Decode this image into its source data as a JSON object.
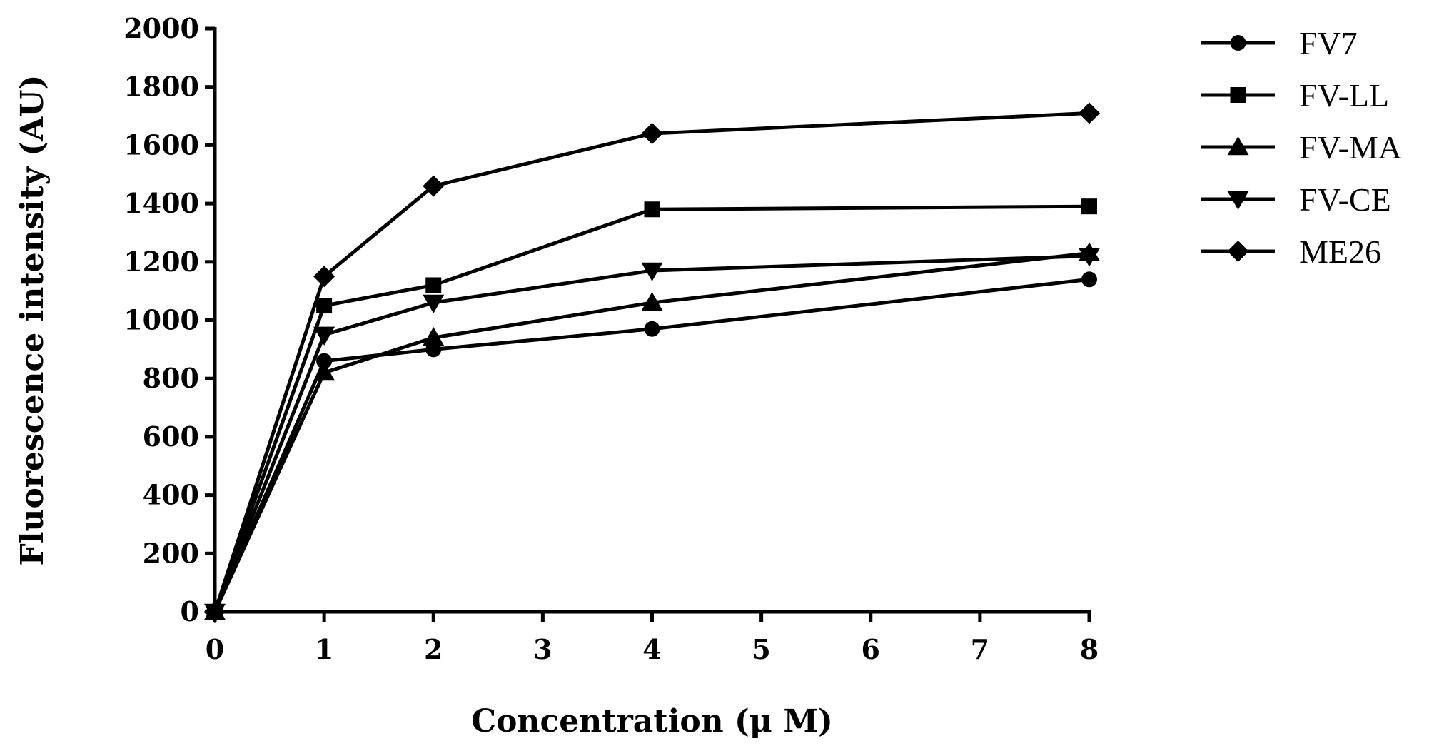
{
  "chart_data": {
    "type": "line",
    "title": "",
    "xlabel": "Concentration (μ M)",
    "ylabel": "Fluorescence intensity (AU)",
    "xlim": [
      0,
      8
    ],
    "ylim": [
      0,
      2000
    ],
    "x_ticks": [
      "0",
      "1",
      "2",
      "3",
      "4",
      "5",
      "6",
      "7",
      "8"
    ],
    "y_ticks": [
      "0",
      "200",
      "400",
      "600",
      "800",
      "1000",
      "1200",
      "1400",
      "1600",
      "1800",
      "2000"
    ],
    "x": [
      0,
      1,
      2,
      4,
      8
    ],
    "legend_position": "right",
    "series": [
      {
        "name": "FV7",
        "marker": "circle",
        "values": [
          0,
          860,
          900,
          970,
          1140
        ]
      },
      {
        "name": "FV-LL",
        "marker": "square",
        "values": [
          0,
          1050,
          1120,
          1380,
          1390
        ]
      },
      {
        "name": "FV-MA",
        "marker": "triangle-up",
        "values": [
          0,
          820,
          940,
          1060,
          1230
        ]
      },
      {
        "name": "FV-CE",
        "marker": "triangle-down",
        "values": [
          0,
          950,
          1060,
          1170,
          1220
        ]
      },
      {
        "name": "ME26",
        "marker": "diamond",
        "values": [
          0,
          1150,
          1460,
          1640,
          1710
        ]
      }
    ]
  }
}
